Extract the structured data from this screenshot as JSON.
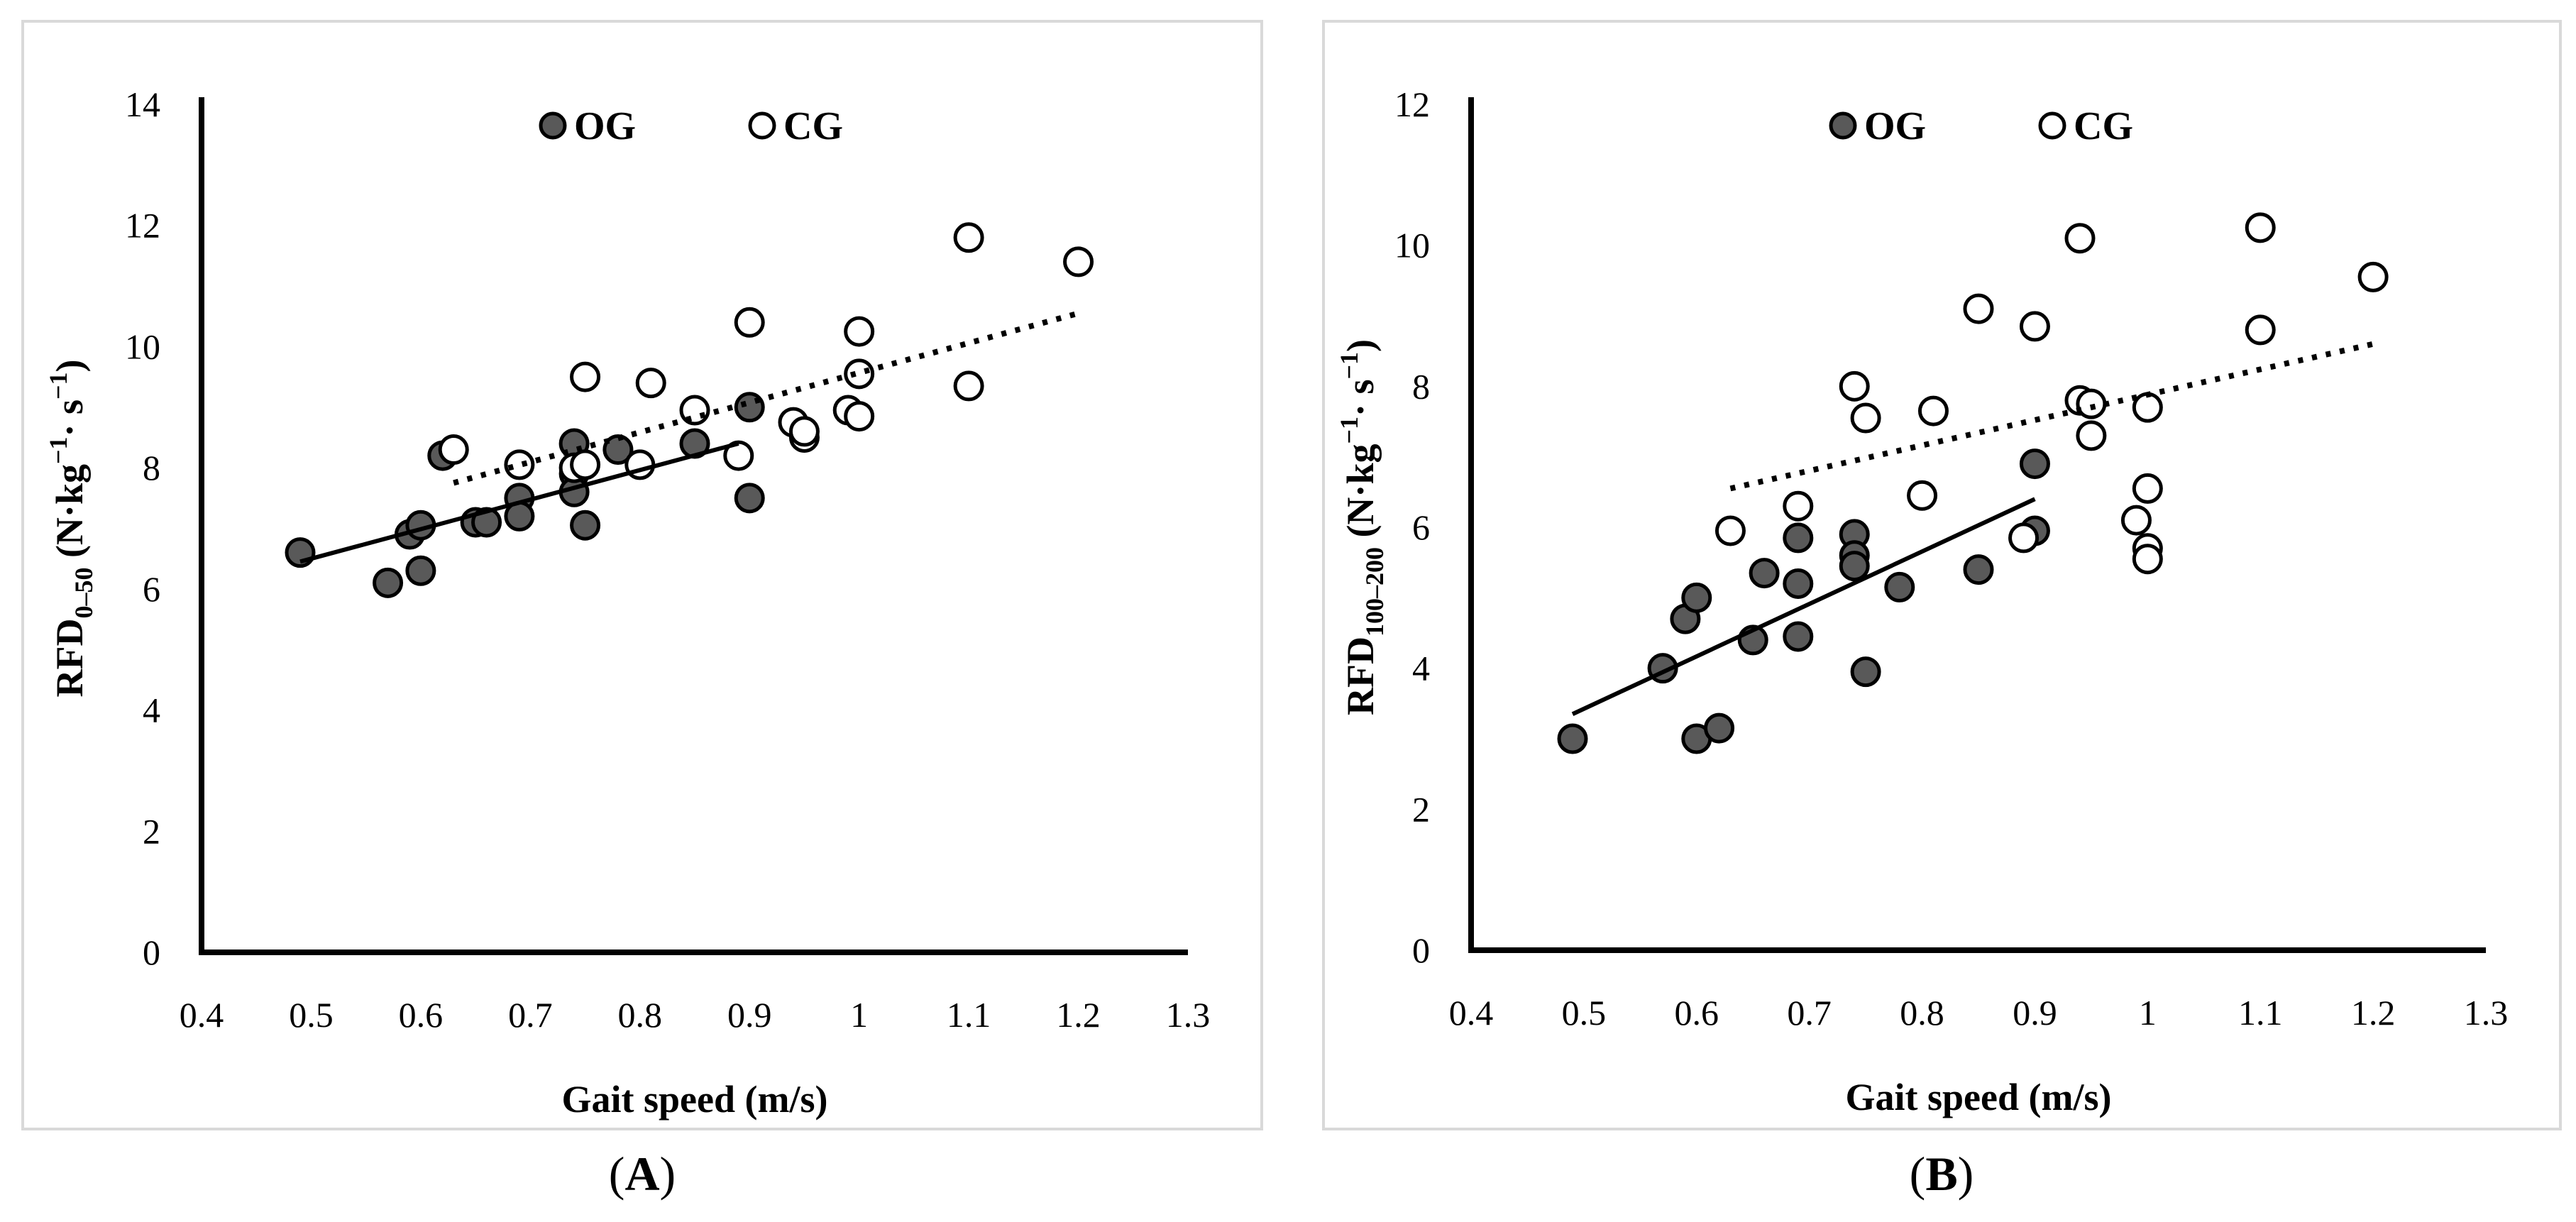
{
  "chart_data": [
    {
      "type": "scatter",
      "panel_label": "A",
      "xlabel": "Gait speed (m/s)",
      "ylabel": {
        "base": "RFD",
        "subscript": "0–50",
        "unit_prefix": " (N·kg",
        "exp1": "−1",
        "unit_mid": "· s",
        "exp2": "−1",
        "unit_suffix": ")"
      },
      "xlim": [
        0.4,
        1.3
      ],
      "ylim": [
        0,
        14
      ],
      "xticks": [
        0.4,
        0.5,
        0.6,
        0.7,
        0.8,
        0.9,
        1,
        1.1,
        1.2,
        1.3
      ],
      "yticks": [
        0,
        2,
        4,
        6,
        8,
        10,
        12,
        14
      ],
      "legend": [
        {
          "name": "OG",
          "marker": "filled"
        },
        {
          "name": "CG",
          "marker": "open"
        }
      ],
      "series": [
        {
          "name": "OG",
          "marker": "filled",
          "points": [
            [
              0.49,
              6.6
            ],
            [
              0.57,
              6.1
            ],
            [
              0.59,
              6.9
            ],
            [
              0.6,
              7.05
            ],
            [
              0.6,
              6.3
            ],
            [
              0.62,
              8.2
            ],
            [
              0.65,
              7.1
            ],
            [
              0.66,
              7.1
            ],
            [
              0.69,
              7.5
            ],
            [
              0.69,
              7.2
            ],
            [
              0.74,
              8.4
            ],
            [
              0.74,
              7.9
            ],
            [
              0.74,
              7.6
            ],
            [
              0.75,
              7.05
            ],
            [
              0.78,
              8.3
            ],
            [
              0.85,
              8.4
            ],
            [
              0.9,
              9.0
            ],
            [
              0.9,
              7.5
            ]
          ],
          "trend": {
            "x0": 0.49,
            "y0": 6.45,
            "x1": 0.89,
            "y1": 8.4,
            "style": "solid"
          }
        },
        {
          "name": "CG",
          "marker": "open",
          "points": [
            [
              0.63,
              8.3
            ],
            [
              0.69,
              8.05
            ],
            [
              0.74,
              8.0
            ],
            [
              0.75,
              8.05
            ],
            [
              0.75,
              9.5
            ],
            [
              0.8,
              8.05
            ],
            [
              0.81,
              9.4
            ],
            [
              0.85,
              8.95
            ],
            [
              0.89,
              8.2
            ],
            [
              0.9,
              10.4
            ],
            [
              0.94,
              8.75
            ],
            [
              0.95,
              8.5
            ],
            [
              0.95,
              8.6
            ],
            [
              0.99,
              8.95
            ],
            [
              1.0,
              8.85
            ],
            [
              1.0,
              9.55
            ],
            [
              1.0,
              10.25
            ],
            [
              1.1,
              11.8
            ],
            [
              1.1,
              9.35
            ],
            [
              1.2,
              11.4
            ]
          ],
          "trend": {
            "x0": 0.63,
            "y0": 7.75,
            "x1": 1.2,
            "y1": 10.55,
            "style": "dotted"
          }
        }
      ]
    },
    {
      "type": "scatter",
      "panel_label": "B",
      "xlabel": "Gait speed (m/s)",
      "ylabel": {
        "base": "RFD",
        "subscript": "100–200",
        "unit_prefix": " (N·kg",
        "exp1": "−1",
        "unit_mid": "· s",
        "exp2": "−1",
        "unit_suffix": ")"
      },
      "xlim": [
        0.4,
        1.3
      ],
      "ylim": [
        0,
        12
      ],
      "xticks": [
        0.4,
        0.5,
        0.6,
        0.7,
        0.8,
        0.9,
        1,
        1.1,
        1.2,
        1.3
      ],
      "yticks": [
        0,
        2,
        4,
        6,
        8,
        10,
        12
      ],
      "legend": [
        {
          "name": "OG",
          "marker": "filled"
        },
        {
          "name": "CG",
          "marker": "open"
        }
      ],
      "series": [
        {
          "name": "OG",
          "marker": "filled",
          "points": [
            [
              0.49,
              3.0
            ],
            [
              0.57,
              4.0
            ],
            [
              0.59,
              4.7
            ],
            [
              0.6,
              5.0
            ],
            [
              0.6,
              3.0
            ],
            [
              0.62,
              3.15
            ],
            [
              0.65,
              4.4
            ],
            [
              0.66,
              5.35
            ],
            [
              0.69,
              5.85
            ],
            [
              0.69,
              5.2
            ],
            [
              0.69,
              4.45
            ],
            [
              0.74,
              5.9
            ],
            [
              0.74,
              5.6
            ],
            [
              0.74,
              5.45
            ],
            [
              0.75,
              3.95
            ],
            [
              0.78,
              5.15
            ],
            [
              0.85,
              5.4
            ],
            [
              0.9,
              6.9
            ],
            [
              0.9,
              5.95
            ]
          ],
          "trend": {
            "x0": 0.49,
            "y0": 3.35,
            "x1": 0.9,
            "y1": 6.4,
            "style": "solid"
          }
        },
        {
          "name": "CG",
          "marker": "open",
          "points": [
            [
              0.63,
              5.95
            ],
            [
              0.69,
              6.3
            ],
            [
              0.74,
              8.0
            ],
            [
              0.75,
              7.55
            ],
            [
              0.8,
              6.45
            ],
            [
              0.81,
              7.65
            ],
            [
              0.85,
              9.1
            ],
            [
              0.89,
              5.85
            ],
            [
              0.9,
              8.85
            ],
            [
              0.94,
              10.1
            ],
            [
              0.94,
              7.8
            ],
            [
              0.95,
              7.75
            ],
            [
              0.95,
              7.3
            ],
            [
              0.99,
              6.1
            ],
            [
              1.0,
              7.7
            ],
            [
              1.0,
              6.55
            ],
            [
              1.0,
              5.7
            ],
            [
              1.0,
              5.55
            ],
            [
              1.1,
              10.25
            ],
            [
              1.1,
              8.8
            ],
            [
              1.2,
              9.55
            ]
          ],
          "trend": {
            "x0": 0.63,
            "y0": 6.55,
            "x1": 1.2,
            "y1": 8.6,
            "style": "dotted"
          }
        }
      ]
    }
  ]
}
